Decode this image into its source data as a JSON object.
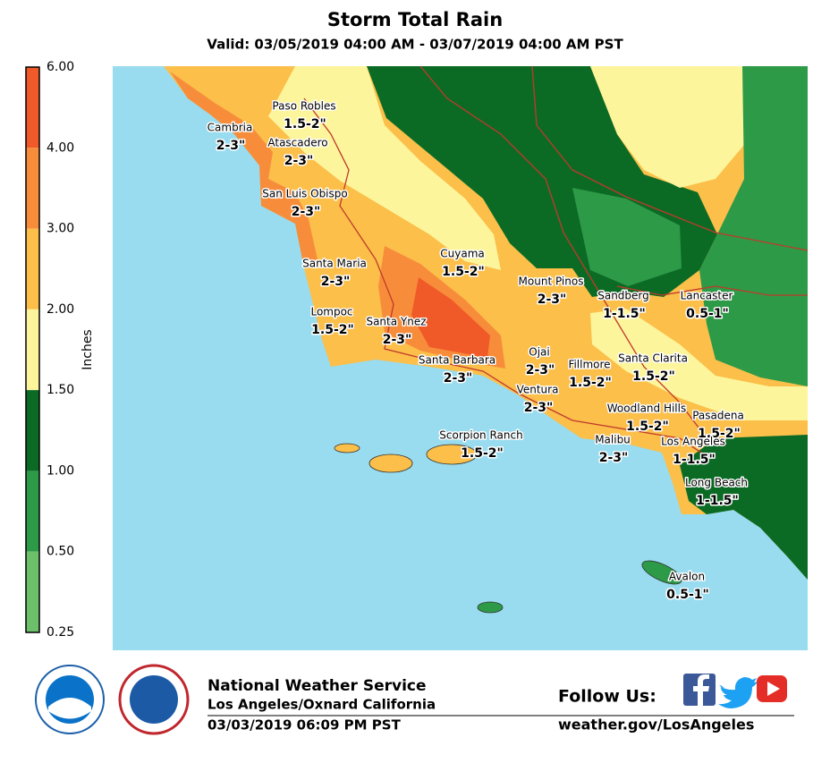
{
  "title": "Storm Total Rain",
  "subtitle": "Valid: 03/05/2019 04:00 AM - 03/07/2019 04:00 AM PST",
  "legend": {
    "title": "Inches",
    "labels": [
      "6.00",
      "4.00",
      "3.00",
      "2.00",
      "1.50",
      "1.00",
      "0.50",
      "0.25"
    ],
    "colors": [
      "#f05a28",
      "#f78d3b",
      "#fbbf4a",
      "#fdf59b",
      "#0b6b25",
      "#2d9a47",
      "#6cc06a"
    ]
  },
  "places": [
    {
      "name": "Paso Robles",
      "amount": "1.5-2\""
    },
    {
      "name": "Cambria",
      "amount": "2-3\""
    },
    {
      "name": "Atascadero",
      "amount": "2-3\""
    },
    {
      "name": "San Luis Obispo",
      "amount": "2-3\""
    },
    {
      "name": "Cuyama",
      "amount": "1.5-2\""
    },
    {
      "name": "Santa Maria",
      "amount": "2-3\""
    },
    {
      "name": "Mount Pinos",
      "amount": "2-3\""
    },
    {
      "name": "Sandberg",
      "amount": "1-1.5\""
    },
    {
      "name": "Lancaster",
      "amount": "0.5-1\""
    },
    {
      "name": "Lompoc",
      "amount": "1.5-2\""
    },
    {
      "name": "Santa Ynez",
      "amount": "2-3\""
    },
    {
      "name": "Ojai",
      "amount": "2-3\""
    },
    {
      "name": "Fillmore",
      "amount": "1.5-2\""
    },
    {
      "name": "Santa Clarita",
      "amount": "1.5-2\""
    },
    {
      "name": "Santa Barbara",
      "amount": "2-3\""
    },
    {
      "name": "Ventura",
      "amount": "2-3\""
    },
    {
      "name": "Woodland Hills",
      "amount": "1.5-2\""
    },
    {
      "name": "Pasadena",
      "amount": "1.5-2\""
    },
    {
      "name": "Scorpion Ranch",
      "amount": "1.5-2\""
    },
    {
      "name": "Malibu",
      "amount": "2-3\""
    },
    {
      "name": "Los Angeles",
      "amount": "1-1.5\""
    },
    {
      "name": "Long Beach",
      "amount": "1-1.5\""
    },
    {
      "name": "Avalon",
      "amount": "0.5-1\""
    }
  ],
  "footer": {
    "agency": "National Weather Service",
    "office": "Los Angeles/Oxnard California",
    "issued": "03/03/2019 06:09 PM PST",
    "follow": "Follow Us:",
    "website": "weather.gov/LosAngeles"
  }
}
